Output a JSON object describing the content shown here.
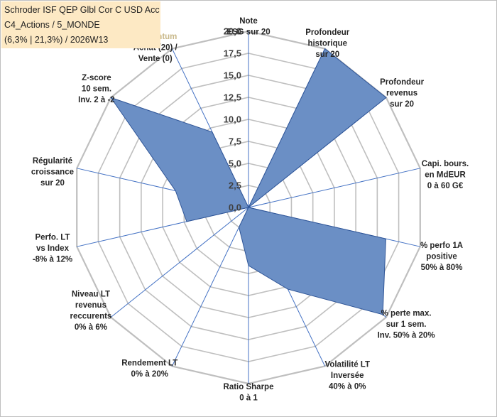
{
  "title": {
    "line1": "Schroder ISF QEP Glbl Cor C USD Acc",
    "line2": "C4_Actions / 5_MONDE",
    "line3": "(6,3% | 21,3%) / 2026W13"
  },
  "chart_data": {
    "type": "radar",
    "rmin": 0,
    "rmax": 20,
    "tick_values": [
      0,
      2.5,
      5,
      7.5,
      10,
      12.5,
      15,
      17.5,
      20
    ],
    "tick_labels": [
      "0,0",
      "2,5",
      "5,0",
      "7,5",
      "10,0",
      "12,5",
      "15,0",
      "17,5",
      "20,0"
    ],
    "axes": [
      {
        "label": [
          "Note",
          "ESG sur 20"
        ],
        "value": 0
      },
      {
        "label": [
          "Profondeur",
          "historique",
          "sur 20"
        ],
        "value": 20
      },
      {
        "label": [
          "Profondeur",
          "revenus",
          "sur 20"
        ],
        "value": 20
      },
      {
        "label": [
          "Capi. bours.",
          "en MdEUR",
          "0 à 60 G€"
        ],
        "value": 0
      },
      {
        "label": [
          "% perfo 1A",
          "positive",
          "50% à 80%"
        ],
        "value": 16
      },
      {
        "label": [
          "% perte max.",
          "sur 1 sem.",
          "Inv. 50% à 20%"
        ],
        "value": 19.5
      },
      {
        "label": [
          "Volatilité LT",
          "Inversée",
          "40% à 0%"
        ],
        "value": 10.3
      },
      {
        "label": [
          "Ratio Sharpe",
          "0 à 1"
        ],
        "value": 6.6
      },
      {
        "label": [
          "Rendement LT",
          "0% à 20%"
        ],
        "value": 2.5
      },
      {
        "label": [
          "Niveau LT",
          "revenus",
          "reccurents",
          "0% à 6%"
        ],
        "value": 0
      },
      {
        "label": [
          "Perfo. LT",
          "vs Index",
          "-8% à 12%"
        ],
        "value": 7.2
      },
      {
        "label": [
          "Régularité",
          "croissance",
          "sur 20"
        ],
        "value": 8.5
      },
      {
        "label": [
          "Z-score",
          "10 sem.",
          "Inv. 2 à -2"
        ],
        "value": 20
      },
      {
        "label": [
          "Momentum",
          "Achat (20) /",
          "Vente (0)"
        ],
        "value": 9.5
      }
    ],
    "colors": {
      "fill": "#6b8fc5",
      "fill_stroke": "#2f5597",
      "grid": "#bfbfbf",
      "spoke": "#4472c4",
      "momentum_label": "#c8b88a"
    },
    "legend": "none"
  }
}
